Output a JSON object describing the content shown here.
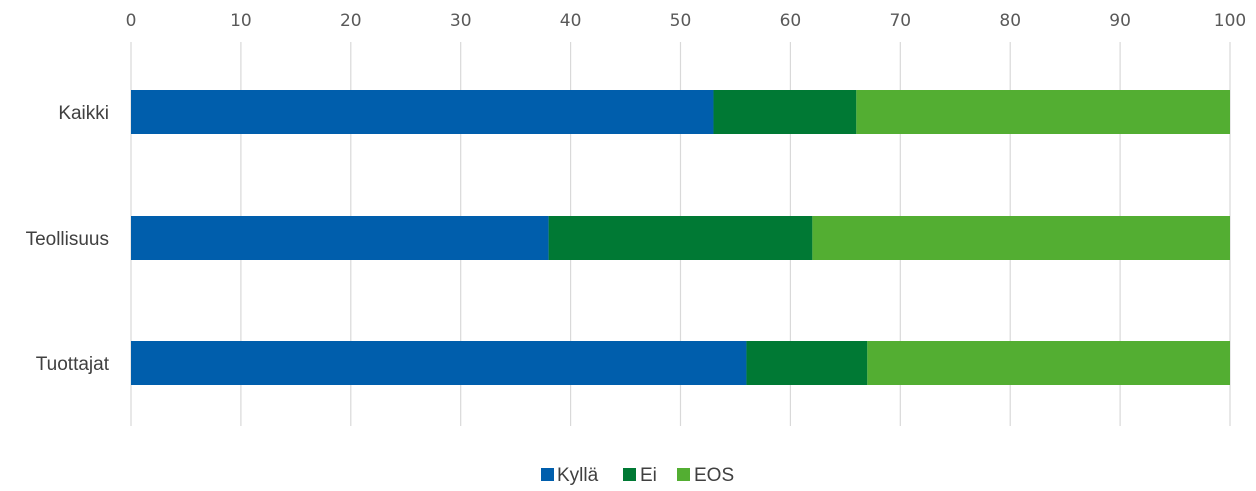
{
  "chart_data": {
    "type": "bar",
    "orientation": "horizontal",
    "stacked": true,
    "categories": [
      "Kaikki",
      "Teollisuus",
      "Tuottajat"
    ],
    "series": [
      {
        "name": "Kyllä",
        "values": [
          53,
          38,
          56
        ],
        "color": "#005eac"
      },
      {
        "name": "Ei",
        "values": [
          13,
          24,
          11
        ],
        "color": "#007934"
      },
      {
        "name": "EOS",
        "values": [
          34,
          38,
          33
        ],
        "color": "#53ae32"
      }
    ],
    "xlim": [
      0,
      100
    ],
    "x_ticks": [
      "0",
      "10",
      "20",
      "30",
      "40",
      "50",
      "60",
      "70",
      "80",
      "90",
      "100"
    ],
    "x_axis_position": "top",
    "grid": true,
    "legend_position": "bottom"
  }
}
